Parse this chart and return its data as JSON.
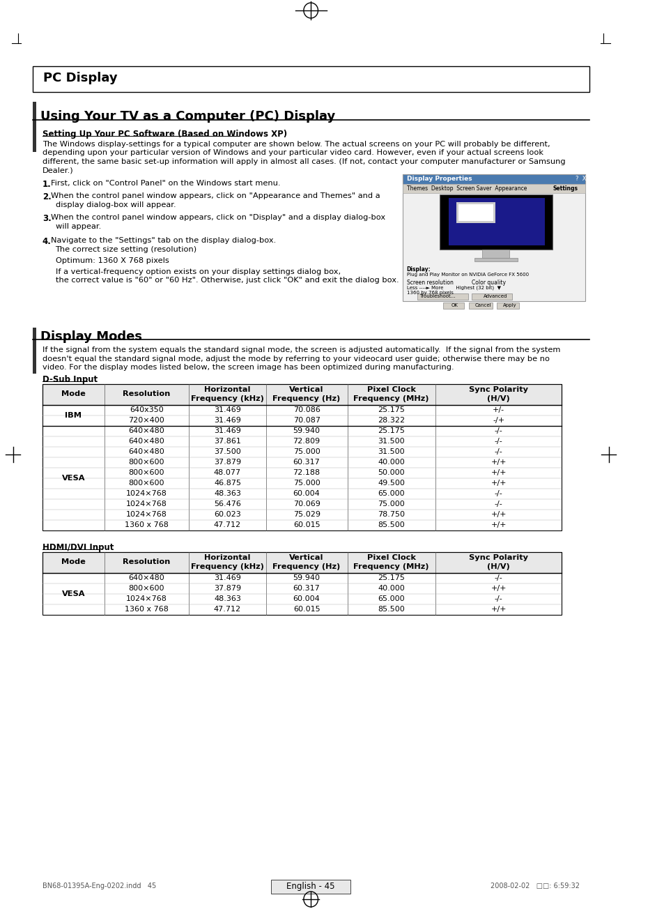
{
  "bg_color": "#ffffff",
  "page_title": "PC Display",
  "section1_title": "Using Your TV as a Computer (PC) Display",
  "subsection1_title": "Setting Up Your PC Software (Based on Windows XP)",
  "subsection1_body": "The Windows display-settings for a typical computer are shown below. The actual screens on your PC will probably be different,\ndepending upon your particular version of Windows and your particular video card. However, even if your actual screens look\ndifferent, the same basic set-up information will apply in almost all cases. (If not, contact your computer manufacturer or Samsung\nDealer.)",
  "section2_title": "Display Modes",
  "section2_body": "If the signal from the system equals the standard signal mode, the screen is adjusted automatically.  If the signal from the system\ndoesn't equal the standard signal mode, adjust the mode by referring to your videocard user guide; otherwise there may be no\nvideo. For the display modes listed below, the screen image has been optimized during manufacturing.",
  "dsub_label": "D-Sub Input",
  "dsub_headers": [
    "Mode",
    "Resolution",
    "Horizontal\nFrequency (kHz)",
    "Vertical\nFrequency (Hz)",
    "Pixel Clock\nFrequency (MHz)",
    "Sync Polarity\n(H/V)"
  ],
  "dsub_rows": [
    [
      "IBM",
      "640x350",
      "31.469",
      "70.086",
      "25.175",
      "+/-"
    ],
    [
      "",
      "720×400",
      "31.469",
      "70.087",
      "28.322",
      "-/+"
    ],
    [
      "VESA",
      "640×480",
      "31.469",
      "59.940",
      "25.175",
      "-/-"
    ],
    [
      "",
      "640×480",
      "37.861",
      "72.809",
      "31.500",
      "-/-"
    ],
    [
      "",
      "640×480",
      "37.500",
      "75.000",
      "31.500",
      "-/-"
    ],
    [
      "",
      "800×600",
      "37.879",
      "60.317",
      "40.000",
      "+/+"
    ],
    [
      "",
      "800×600",
      "48.077",
      "72.188",
      "50.000",
      "+/+"
    ],
    [
      "",
      "800×600",
      "46.875",
      "75.000",
      "49.500",
      "+/+"
    ],
    [
      "",
      "1024×768",
      "48.363",
      "60.004",
      "65.000",
      "-/-"
    ],
    [
      "",
      "1024×768",
      "56.476",
      "70.069",
      "75.000",
      "-/-"
    ],
    [
      "",
      "1024×768",
      "60.023",
      "75.029",
      "78.750",
      "+/+"
    ],
    [
      "",
      "1360 x 768",
      "47.712",
      "60.015",
      "85.500",
      "+/+"
    ]
  ],
  "hdmi_label": "HDMI/DVI Input",
  "hdmi_headers": [
    "Mode",
    "Resolution",
    "Horizontal\nFrequency (kHz)",
    "Vertical\nFrequency (Hz)",
    "Pixel Clock\nFrequency (MHz)",
    "Sync Polarity\n(H/V)"
  ],
  "hdmi_rows": [
    [
      "VESA",
      "640×480",
      "31.469",
      "59.940",
      "25.175",
      "-/-"
    ],
    [
      "",
      "800×600",
      "37.879",
      "60.317",
      "40.000",
      "+/+"
    ],
    [
      "",
      "1024×768",
      "48.363",
      "60.004",
      "65.000",
      "-/-"
    ],
    [
      "",
      "1360 x 768",
      "47.712",
      "60.015",
      "85.500",
      "+/+"
    ]
  ],
  "footer_left": "BN68-01395A-Eng-0202.indd   45",
  "footer_center": "English - 45",
  "footer_right": "2008-02-02   □□: 6:59:32"
}
